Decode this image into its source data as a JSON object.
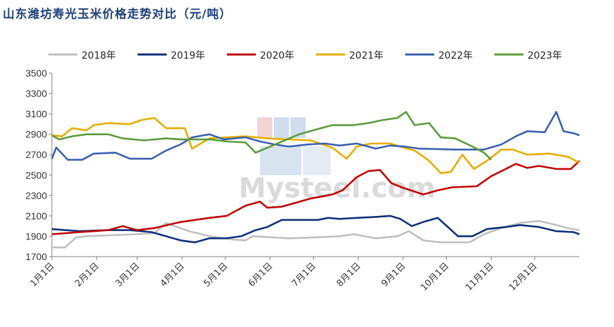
{
  "chart_data": {
    "type": "line",
    "title": "山东潍坊寿光玉米价格走势对比（元/吨）",
    "ylim": [
      1700,
      3500
    ],
    "yticks": [
      1700,
      1900,
      2100,
      2300,
      2500,
      2700,
      2900,
      3100,
      3300,
      3500
    ],
    "xlim": [
      1,
      366
    ],
    "xticks": [
      {
        "label": "1月1日",
        "day": 1
      },
      {
        "label": "2月1日",
        "day": 32
      },
      {
        "label": "3月1日",
        "day": 60
      },
      {
        "label": "4月1日",
        "day": 91
      },
      {
        "label": "5月1日",
        "day": 121
      },
      {
        "label": "6月1日",
        "day": 152
      },
      {
        "label": "7月1日",
        "day": 182
      },
      {
        "label": "8月1日",
        "day": 213
      },
      {
        "label": "9月1日",
        "day": 244
      },
      {
        "label": "10月1日",
        "day": 274
      },
      {
        "label": "11月1日",
        "day": 305
      },
      {
        "label": "12月1日",
        "day": 335
      }
    ],
    "legend_position": "top",
    "grid": false,
    "watermark": "Mysteel.com",
    "series": [
      {
        "name": "2018年",
        "color": "#bfbfbf",
        "points": [
          [
            1,
            1790
          ],
          [
            10,
            1790
          ],
          [
            14,
            1840
          ],
          [
            18,
            1890
          ],
          [
            25,
            1900
          ],
          [
            60,
            1920
          ],
          [
            72,
            1930
          ],
          [
            80,
            2030
          ],
          [
            96,
            1950
          ],
          [
            110,
            1900
          ],
          [
            125,
            1870
          ],
          [
            135,
            1860
          ],
          [
            140,
            1900
          ],
          [
            165,
            1880
          ],
          [
            185,
            1890
          ],
          [
            200,
            1900
          ],
          [
            210,
            1920
          ],
          [
            225,
            1880
          ],
          [
            240,
            1900
          ],
          [
            248,
            1950
          ],
          [
            258,
            1860
          ],
          [
            270,
            1840
          ],
          [
            290,
            1840
          ],
          [
            300,
            1920
          ],
          [
            312,
            1980
          ],
          [
            325,
            2030
          ],
          [
            338,
            2050
          ],
          [
            350,
            2010
          ],
          [
            358,
            1980
          ],
          [
            366,
            1960
          ]
        ]
      },
      {
        "name": "2019年",
        "color": "#0d2f7a",
        "points": [
          [
            1,
            1970
          ],
          [
            20,
            1950
          ],
          [
            40,
            1960
          ],
          [
            55,
            1960
          ],
          [
            70,
            1940
          ],
          [
            80,
            1900
          ],
          [
            90,
            1860
          ],
          [
            100,
            1840
          ],
          [
            110,
            1880
          ],
          [
            122,
            1880
          ],
          [
            132,
            1900
          ],
          [
            142,
            1960
          ],
          [
            150,
            1990
          ],
          [
            160,
            2060
          ],
          [
            172,
            2060
          ],
          [
            185,
            2060
          ],
          [
            192,
            2080
          ],
          [
            200,
            2070
          ],
          [
            212,
            2080
          ],
          [
            225,
            2090
          ],
          [
            235,
            2100
          ],
          [
            242,
            2070
          ],
          [
            250,
            2000
          ],
          [
            258,
            2040
          ],
          [
            268,
            2080
          ],
          [
            275,
            1990
          ],
          [
            282,
            1900
          ],
          [
            292,
            1900
          ],
          [
            302,
            1970
          ],
          [
            315,
            1990
          ],
          [
            325,
            2010
          ],
          [
            338,
            1990
          ],
          [
            350,
            1950
          ],
          [
            362,
            1940
          ],
          [
            366,
            1920
          ]
        ]
      },
      {
        "name": "2020年",
        "color": "#c00000",
        "points": [
          [
            1,
            1920
          ],
          [
            20,
            1940
          ],
          [
            40,
            1960
          ],
          [
            50,
            2000
          ],
          [
            60,
            1960
          ],
          [
            72,
            1980
          ],
          [
            90,
            2040
          ],
          [
            100,
            2060
          ],
          [
            110,
            2080
          ],
          [
            122,
            2100
          ],
          [
            135,
            2200
          ],
          [
            145,
            2240
          ],
          [
            150,
            2180
          ],
          [
            160,
            2190
          ],
          [
            170,
            2230
          ],
          [
            180,
            2270
          ],
          [
            195,
            2310
          ],
          [
            202,
            2350
          ],
          [
            212,
            2480
          ],
          [
            220,
            2540
          ],
          [
            228,
            2550
          ],
          [
            236,
            2420
          ],
          [
            243,
            2380
          ],
          [
            258,
            2310
          ],
          [
            268,
            2350
          ],
          [
            278,
            2380
          ],
          [
            295,
            2390
          ],
          [
            305,
            2490
          ],
          [
            315,
            2560
          ],
          [
            322,
            2610
          ],
          [
            330,
            2570
          ],
          [
            338,
            2590
          ],
          [
            350,
            2560
          ],
          [
            360,
            2560
          ],
          [
            366,
            2640
          ]
        ]
      },
      {
        "name": "2021年",
        "color": "#e6ac00",
        "points": [
          [
            1,
            2890
          ],
          [
            8,
            2880
          ],
          [
            15,
            2960
          ],
          [
            25,
            2940
          ],
          [
            30,
            2990
          ],
          [
            40,
            3010
          ],
          [
            55,
            3000
          ],
          [
            63,
            3040
          ],
          [
            72,
            3060
          ],
          [
            80,
            2960
          ],
          [
            93,
            2960
          ],
          [
            98,
            2760
          ],
          [
            110,
            2860
          ],
          [
            122,
            2870
          ],
          [
            135,
            2880
          ],
          [
            150,
            2860
          ],
          [
            165,
            2850
          ],
          [
            180,
            2840
          ],
          [
            195,
            2770
          ],
          [
            205,
            2660
          ],
          [
            212,
            2780
          ],
          [
            222,
            2810
          ],
          [
            235,
            2810
          ],
          [
            242,
            2780
          ],
          [
            252,
            2740
          ],
          [
            262,
            2640
          ],
          [
            270,
            2520
          ],
          [
            277,
            2530
          ],
          [
            285,
            2700
          ],
          [
            293,
            2560
          ],
          [
            302,
            2640
          ],
          [
            312,
            2750
          ],
          [
            320,
            2750
          ],
          [
            330,
            2700
          ],
          [
            345,
            2710
          ],
          [
            358,
            2680
          ],
          [
            366,
            2620
          ]
        ]
      },
      {
        "name": "2022年",
        "color": "#3a5fb0",
        "points": [
          [
            1,
            2660
          ],
          [
            4,
            2770
          ],
          [
            12,
            2650
          ],
          [
            22,
            2650
          ],
          [
            30,
            2710
          ],
          [
            45,
            2720
          ],
          [
            55,
            2660
          ],
          [
            70,
            2660
          ],
          [
            80,
            2740
          ],
          [
            90,
            2800
          ],
          [
            98,
            2870
          ],
          [
            110,
            2900
          ],
          [
            120,
            2850
          ],
          [
            135,
            2870
          ],
          [
            145,
            2830
          ],
          [
            155,
            2800
          ],
          [
            165,
            2780
          ],
          [
            178,
            2800
          ],
          [
            190,
            2810
          ],
          [
            200,
            2790
          ],
          [
            212,
            2810
          ],
          [
            225,
            2760
          ],
          [
            235,
            2790
          ],
          [
            245,
            2780
          ],
          [
            255,
            2760
          ],
          [
            280,
            2750
          ],
          [
            290,
            2750
          ],
          [
            300,
            2750
          ],
          [
            312,
            2800
          ],
          [
            322,
            2880
          ],
          [
            330,
            2930
          ],
          [
            342,
            2920
          ],
          [
            350,
            3120
          ],
          [
            355,
            2930
          ],
          [
            362,
            2910
          ],
          [
            366,
            2890
          ]
        ]
      },
      {
        "name": "2023年",
        "color": "#5a9a3a",
        "points": [
          [
            1,
            2890
          ],
          [
            6,
            2850
          ],
          [
            15,
            2880
          ],
          [
            25,
            2900
          ],
          [
            40,
            2900
          ],
          [
            50,
            2860
          ],
          [
            65,
            2840
          ],
          [
            80,
            2860
          ],
          [
            90,
            2850
          ],
          [
            110,
            2850
          ],
          [
            122,
            2830
          ],
          [
            135,
            2820
          ],
          [
            142,
            2720
          ],
          [
            152,
            2780
          ],
          [
            162,
            2840
          ],
          [
            172,
            2900
          ],
          [
            182,
            2940
          ],
          [
            195,
            2990
          ],
          [
            210,
            2990
          ],
          [
            220,
            3010
          ],
          [
            230,
            3040
          ],
          [
            240,
            3060
          ],
          [
            246,
            3120
          ],
          [
            252,
            2990
          ],
          [
            262,
            3010
          ],
          [
            270,
            2870
          ],
          [
            280,
            2860
          ],
          [
            292,
            2780
          ],
          [
            300,
            2720
          ],
          [
            305,
            2650
          ]
        ]
      }
    ]
  }
}
